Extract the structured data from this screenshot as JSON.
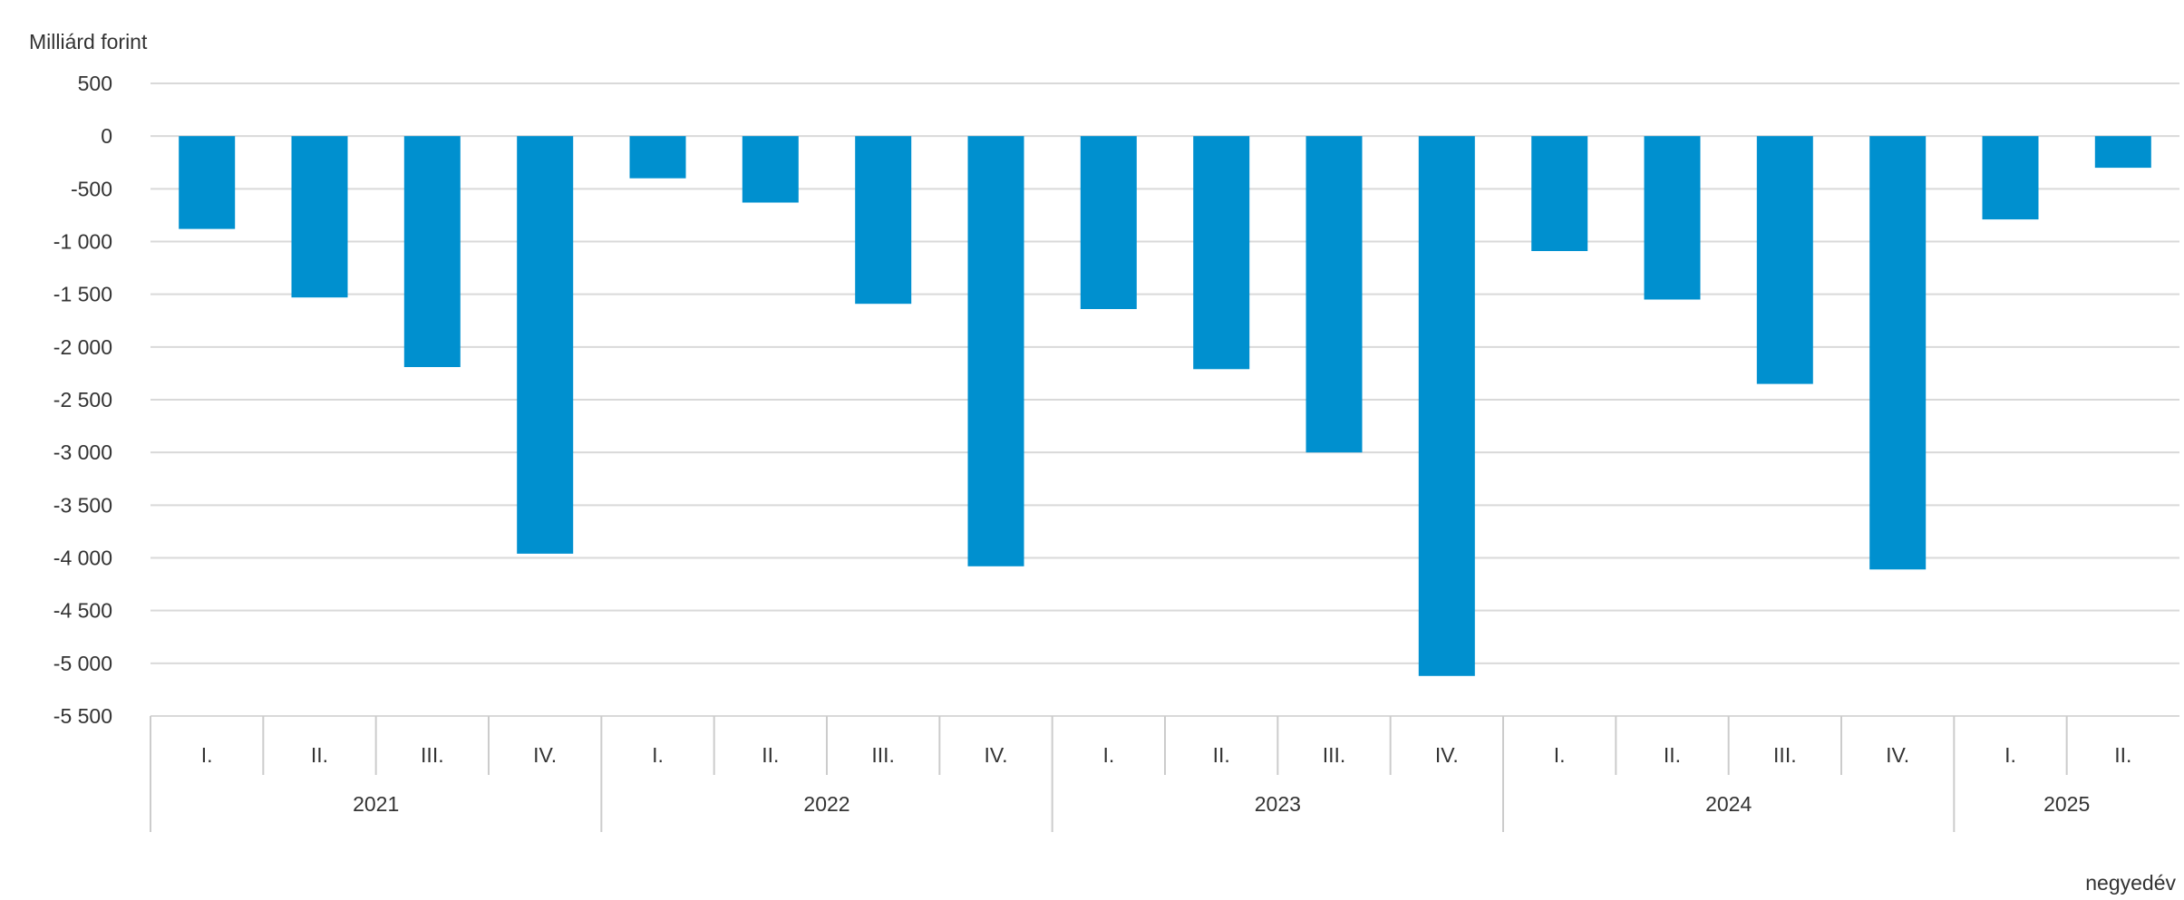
{
  "chart_data": {
    "type": "bar",
    "title": "",
    "ylabel": "Milliárd forint",
    "xlabel": "negyedév",
    "ylim": [
      -5500,
      500
    ],
    "yticks": [
      500,
      0,
      -500,
      -1000,
      -1500,
      -2000,
      -2500,
      -3000,
      -3500,
      -4000,
      -4500,
      -5000,
      -5500
    ],
    "ytick_labels": [
      "500",
      "0",
      "-500",
      "-1 000",
      "-1 500",
      "-2 000",
      "-2 500",
      "-3 000",
      "-3 500",
      "-4 000",
      "-4 500",
      "-5 000",
      "-5 500"
    ],
    "grid": true,
    "bar_color": "#0090cf",
    "categories": [
      {
        "quarter": "I.",
        "year": "2021"
      },
      {
        "quarter": "II.",
        "year": "2021"
      },
      {
        "quarter": "III.",
        "year": "2021"
      },
      {
        "quarter": "IV.",
        "year": "2021"
      },
      {
        "quarter": "I.",
        "year": "2022"
      },
      {
        "quarter": "II.",
        "year": "2022"
      },
      {
        "quarter": "III.",
        "year": "2022"
      },
      {
        "quarter": "IV.",
        "year": "2022"
      },
      {
        "quarter": "I.",
        "year": "2023"
      },
      {
        "quarter": "II.",
        "year": "2023"
      },
      {
        "quarter": "III.",
        "year": "2023"
      },
      {
        "quarter": "IV.",
        "year": "2023"
      },
      {
        "quarter": "I.",
        "year": "2024"
      },
      {
        "quarter": "II.",
        "year": "2024"
      },
      {
        "quarter": "III.",
        "year": "2024"
      },
      {
        "quarter": "IV.",
        "year": "2024"
      },
      {
        "quarter": "I.",
        "year": "2025"
      },
      {
        "quarter": "II.",
        "year": "2025"
      }
    ],
    "years": [
      "2021",
      "2022",
      "2023",
      "2024",
      "2025"
    ],
    "values": [
      -880,
      -1530,
      -2190,
      -3960,
      -400,
      -630,
      -1590,
      -4080,
      -1640,
      -2210,
      -3000,
      -5120,
      -1090,
      -1550,
      -2350,
      -4110,
      -790,
      -300
    ]
  }
}
